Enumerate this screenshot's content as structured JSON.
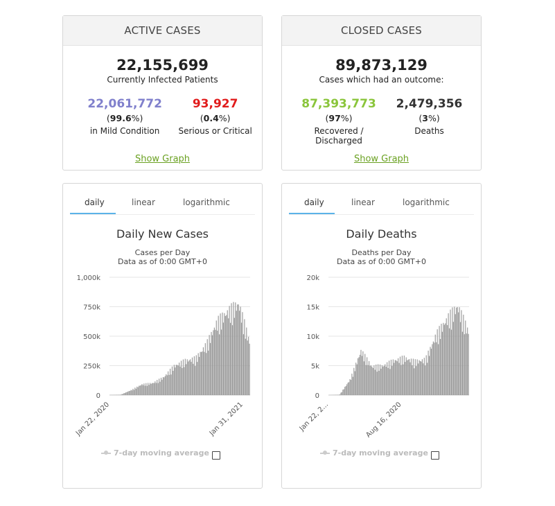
{
  "active": {
    "header": "ACTIVE CASES",
    "total": "22,155,699",
    "total_label": "Currently Infected Patients",
    "mild": {
      "num": "22,061,772",
      "pct_open": " (",
      "pct": "99.6",
      "pct_close": "%)",
      "label": "in Mild Condition",
      "color": "#8080cc"
    },
    "serious": {
      "num": "93,927",
      "pct_open": " (",
      "pct": "0.4",
      "pct_close": "%)",
      "label": "Serious or Critical",
      "color": "#e11b1b"
    },
    "link": "Show Graph"
  },
  "closed": {
    "header": "CLOSED CASES",
    "total": "89,873,129",
    "total_label": "Cases which had an outcome:",
    "recovered": {
      "num": "87,393,773",
      "pct_open": " (",
      "pct": "97",
      "pct_close": "%)",
      "label": "Recovered / Discharged",
      "color": "#8ac53b"
    },
    "deaths": {
      "num": "2,479,356",
      "pct_open": " (",
      "pct": "3",
      "pct_close": "%)",
      "label": "Deaths",
      "color": "#333333"
    },
    "link": "Show Graph"
  },
  "charts": [
    {
      "tabs": [
        "daily",
        "linear",
        "logarithmic"
      ],
      "active_tab": "daily",
      "title": "Daily New Cases",
      "subtitle1": "Cases per Day",
      "subtitle2": "Data as of 0:00 GMT+0",
      "legend": "7-day moving average"
    },
    {
      "tabs": [
        "daily",
        "linear",
        "logarithmic"
      ],
      "active_tab": "daily",
      "title": "Daily Deaths",
      "subtitle1": "Deaths per Day",
      "subtitle2": "Data as of 0:00 GMT+0",
      "legend": "7-day moving average"
    }
  ],
  "chart_data": [
    {
      "type": "bar",
      "title": "Daily New Cases",
      "subtitle": "Cases per Day",
      "ylim": [
        0,
        1000000
      ],
      "yticks": [
        0,
        250000,
        500000,
        750000,
        1000000
      ],
      "ytick_labels": [
        "0",
        "250k",
        "500k",
        "750k",
        "1,000k"
      ],
      "xtick_labels": [
        "Jan 22, 2020",
        "Jan 31, 2021"
      ],
      "grid": true,
      "bar_color": "#999999",
      "monthly_approx": {
        "x": [
          "2020-01",
          "2020-02",
          "2020-03",
          "2020-04",
          "2020-05",
          "2020-06",
          "2020-07",
          "2020-08",
          "2020-09",
          "2020-10",
          "2020-11",
          "2020-12",
          "2021-01",
          "2021-02"
        ],
        "values": [
          1000,
          3000,
          40000,
          85000,
          95000,
          140000,
          230000,
          270000,
          290000,
          400000,
          580000,
          660000,
          720000,
          420000
        ]
      }
    },
    {
      "type": "bar",
      "title": "Daily Deaths",
      "subtitle": "Deaths per Day",
      "ylim": [
        0,
        20000
      ],
      "yticks": [
        0,
        5000,
        10000,
        15000,
        20000
      ],
      "ytick_labels": [
        "0",
        "5k",
        "10k",
        "15k",
        "20k"
      ],
      "xtick_labels": [
        "Jan 22, 2...",
        "Aug 16, 2020"
      ],
      "grid": true,
      "bar_color": "#999999",
      "monthly_approx": {
        "x": [
          "2020-01",
          "2020-02",
          "2020-03",
          "2020-04",
          "2020-05",
          "2020-06",
          "2020-07",
          "2020-08",
          "2020-09",
          "2020-10",
          "2020-11",
          "2020-12",
          "2021-01",
          "2021-02"
        ],
        "values": [
          10,
          60,
          2500,
          7000,
          4500,
          4600,
          5400,
          5900,
          5300,
          5600,
          9500,
          12000,
          14000,
          10000
        ]
      }
    }
  ]
}
